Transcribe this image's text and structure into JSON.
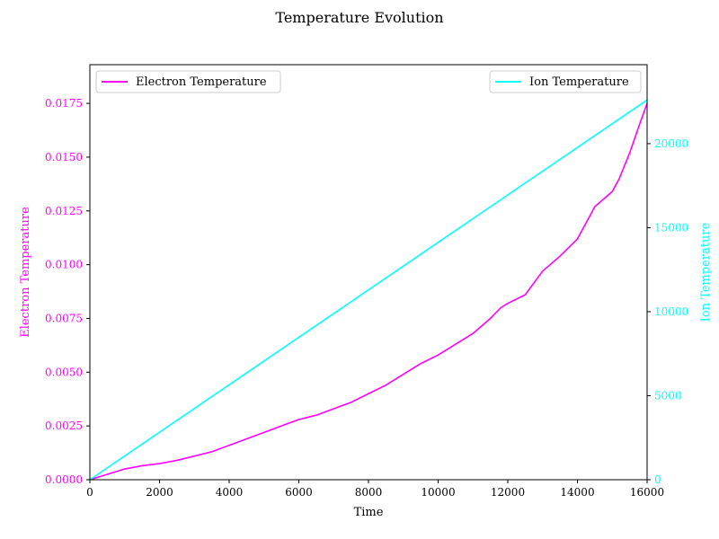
{
  "chart_data": {
    "type": "line",
    "title": "Temperature Evolution",
    "xlabel": "Time",
    "xlim": [
      0,
      16000
    ],
    "x_ticks": [
      0,
      2000,
      4000,
      6000,
      8000,
      10000,
      12000,
      14000,
      16000
    ],
    "grid": false,
    "left_axis": {
      "label": "Electron Temperature",
      "color": "#ff00ff",
      "ylim": [
        0,
        0.0193
      ],
      "ticks": [
        "0.0000",
        "0.0025",
        "0.0050",
        "0.0075",
        "0.0100",
        "0.0125",
        "0.0150",
        "0.0175"
      ]
    },
    "right_axis": {
      "label": "Ion Temperature",
      "color": "#00ffff",
      "ylim": [
        0,
        24700
      ],
      "ticks": [
        "0",
        "5000",
        "10000",
        "15000",
        "20000"
      ]
    },
    "series": [
      {
        "name": "Electron Temperature",
        "axis": "left",
        "color": "#ff00ff",
        "legend_position": "upper-left",
        "x": [
          0,
          500,
          1000,
          1500,
          2000,
          2500,
          3000,
          3500,
          4000,
          4500,
          5000,
          5500,
          6000,
          6500,
          7000,
          7500,
          8000,
          8500,
          9000,
          9500,
          10000,
          10500,
          11000,
          11500,
          11800,
          12000,
          12500,
          13000,
          13500,
          14000,
          14500,
          15000,
          15200,
          15500,
          15800,
          16000
        ],
        "values": [
          0,
          0.00025,
          0.0005,
          0.00065,
          0.00075,
          0.0009,
          0.0011,
          0.0013,
          0.0016,
          0.0019,
          0.0022,
          0.0025,
          0.0028,
          0.003,
          0.0033,
          0.0036,
          0.004,
          0.0044,
          0.0049,
          0.0054,
          0.0058,
          0.0063,
          0.0068,
          0.0075,
          0.008,
          0.0082,
          0.0086,
          0.0097,
          0.0104,
          0.0112,
          0.0127,
          0.0134,
          0.014,
          0.0152,
          0.0166,
          0.0175
        ]
      },
      {
        "name": "Ion Temperature",
        "axis": "right",
        "color": "#00ffff",
        "legend_position": "upper-right",
        "x": [
          0,
          16000
        ],
        "values": [
          0,
          22600
        ]
      }
    ]
  }
}
